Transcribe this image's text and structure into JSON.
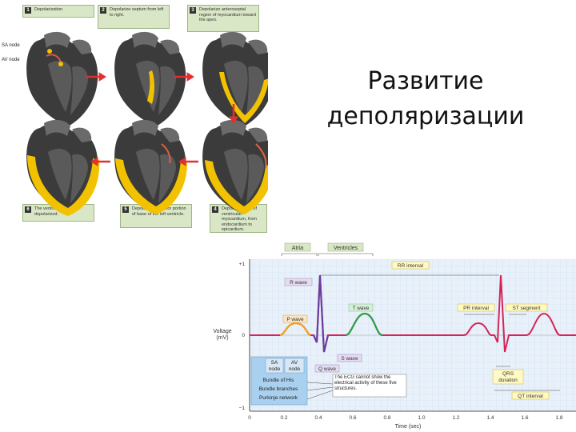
{
  "slide": {
    "title_line1": "Развитие",
    "title_line2": "деполяризации"
  },
  "heart_diagram": {
    "steps": [
      {
        "num": "1",
        "text": "Depolarization"
      },
      {
        "num": "2",
        "text": "Depolarize septum from left to right."
      },
      {
        "num": "3",
        "text": "Depolarize anteroseptal region of myocardium toward the apex."
      },
      {
        "num": "4",
        "text": "Depolarize bulk of ventricular myocardium, from endocardium to epicardium."
      },
      {
        "num": "5",
        "text": "Depolarize posterior portion of base of the left ventricle."
      },
      {
        "num": "6",
        "text": "The ventricles are now depolarized."
      }
    ],
    "labels": {
      "sa": "SA node",
      "av": "AV node"
    }
  },
  "ecg": {
    "atria": "Atria",
    "ventricles": "Ventricles",
    "rr": "RR interval",
    "r_wave": "R wave",
    "t_wave": "T wave",
    "p_wave": "P wave",
    "s_wave": "S wave",
    "q_wave": "Q wave",
    "pr_interval": "PR interval",
    "st_segment": "ST segment",
    "qrs_line1": "QRS",
    "qrs_line2": "duration",
    "qt_interval": "QT interval",
    "yaxis_line1": "Voltage",
    "yaxis_line2": "(mV)",
    "y_ticks": [
      "+1",
      "0",
      "−1"
    ],
    "x_ticks": [
      "0",
      "0.2",
      "0.4",
      "0.6",
      "0.8",
      "1.0",
      "1.2",
      "1.4",
      "1.6",
      "1.8"
    ],
    "xlabel": "Time (sec)",
    "conduction": {
      "sa1": "SA",
      "sa2": "node",
      "av1": "AV",
      "av2": "node",
      "bundle": "Bundle of His",
      "branches": "Bundle branches",
      "purkinje": "Purkinje network"
    },
    "note": "The ECG cannot show the electrical activity of these five structures."
  }
}
